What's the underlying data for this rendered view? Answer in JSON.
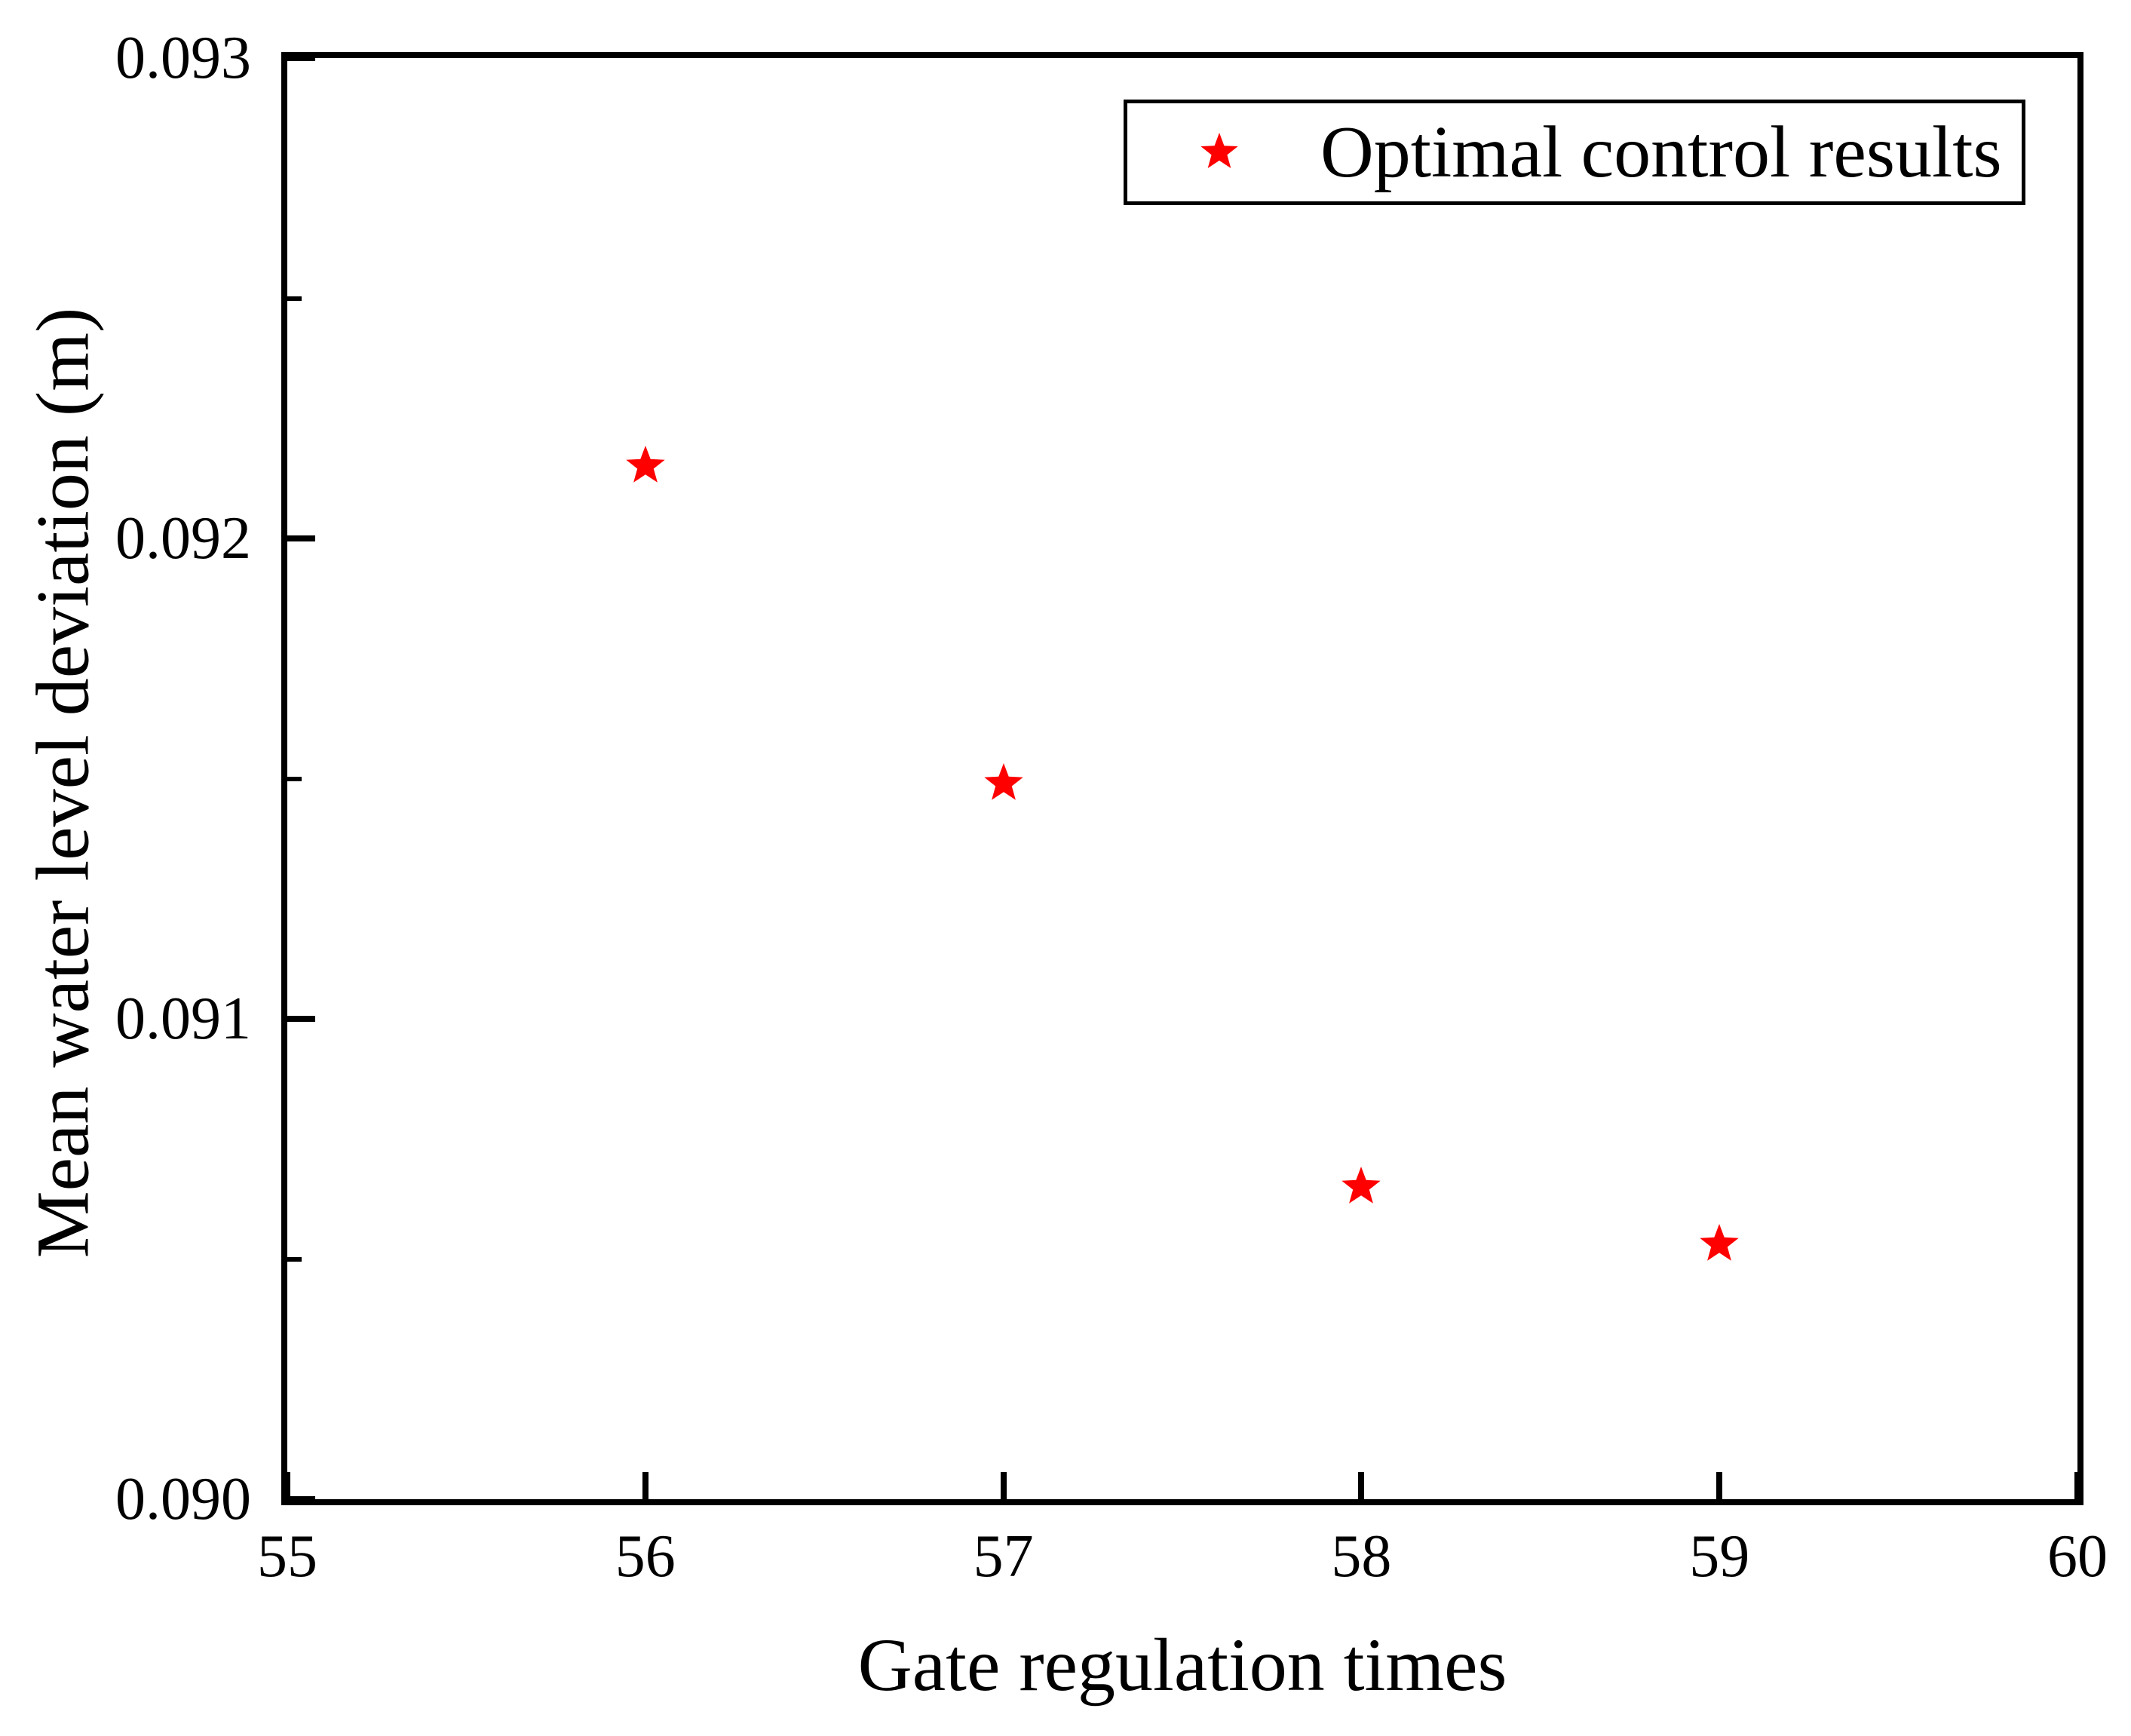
{
  "chart_data": {
    "type": "scatter",
    "title": "",
    "xlabel": "Gate regulation times",
    "ylabel": "Mean water level deviation (m)",
    "xlim": [
      55,
      60
    ],
    "ylim": [
      0.09,
      0.093
    ],
    "x_ticks": [
      55,
      56,
      57,
      58,
      59,
      60
    ],
    "x_tick_labels": [
      "55",
      "56",
      "57",
      "58",
      "59",
      "60"
    ],
    "y_ticks": [
      0.09,
      0.091,
      0.092,
      0.093
    ],
    "y_tick_labels": [
      "0.090",
      "0.091",
      "0.092",
      "0.093"
    ],
    "y_minor_ticks": [
      0.0905,
      0.0915,
      0.0925
    ],
    "grid": false,
    "legend": {
      "position": "top-right-inside",
      "entries": [
        {
          "label": "Optimal control results",
          "marker": "star",
          "color": "#fe0000"
        }
      ]
    },
    "series": [
      {
        "name": "Optimal control results",
        "marker": "star",
        "color": "#fe0000",
        "x": [
          56,
          57,
          58,
          59
        ],
        "y": [
          0.09215,
          0.09149,
          0.09065,
          0.09053
        ]
      }
    ]
  },
  "colors": {
    "marker": "#fe0000",
    "axis": "#000000",
    "background": "#ffffff"
  }
}
